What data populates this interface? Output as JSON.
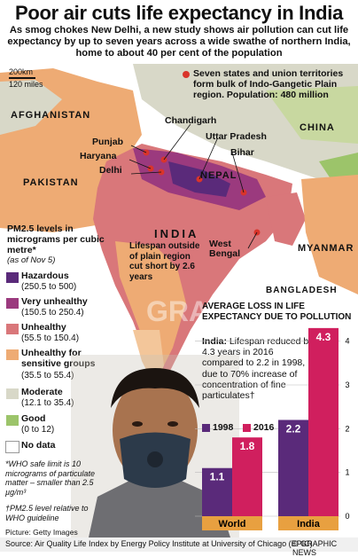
{
  "title": "Poor air cuts life expectancy in India",
  "subtitle": "As smog chokes New Delhi, a new study shows air pollution can cut life expectancy by up to seven years across a wide swathe of northern India, home to about 40 per cent of the population",
  "scale": {
    "km": "200km",
    "miles": "120 miles"
  },
  "states_note": "Seven states and union territories form bulk of Indo-Gangetic Plain region. Population: 480 million",
  "countries": {
    "afghanistan": "AFGHANISTAN",
    "pakistan": "PAKISTAN",
    "china": "CHINA",
    "nepal": "NEPAL",
    "india": "INDIA",
    "myanmar": "MYANMAR",
    "bangladesh": "BANGLADESH"
  },
  "places": {
    "punjab": "Punjab",
    "haryana": "Haryana",
    "delhi": "Delhi",
    "chandigarh": "Chandigarh",
    "uttar_pradesh": "Uttar Pradesh",
    "bihar": "Bihar",
    "west_bengal": "West Bengal"
  },
  "legend": {
    "title": "PM2.5 levels in micrograms per cubic metre*",
    "subtitle": "(as of Nov 5)",
    "items": [
      {
        "name": "Hazardous",
        "range": "(250.5 to 500)",
        "color": "#5a2a7a"
      },
      {
        "name": "Very unhealthy",
        "range": "(150.5 to 250.4)",
        "color": "#9b3a7e"
      },
      {
        "name": "Unhealthy",
        "range": "(55.5 to 150.4)",
        "color": "#d9777a"
      },
      {
        "name": "Unhealthy for sensitive groups",
        "range": "(35.5 to 55.4)",
        "color": "#eeab74"
      },
      {
        "name": "Moderate",
        "range": "(12.1 to 35.4)",
        "color": "#d8d8c8"
      },
      {
        "name": "Good",
        "range": "(0 to 12)",
        "color": "#9cc46a"
      },
      {
        "name": "No data",
        "range": "",
        "color": "#ffffff"
      }
    ]
  },
  "lifespan_note": "Lifespan outside of plain region cut short by 2.6 years",
  "who_note": "*WHO safe limit is 10 micrograms of particulate matter – smaller than 2.5 µg/m³",
  "pm_note": "†PM2.5 level relative to WHO guideline",
  "picture_credit": "Picture: Getty Images",
  "watermark": "GRAPHIC NEWS",
  "chart_data": {
    "type": "bar",
    "title": "AVERAGE LOSS IN LIFE EXPECTANCY DUE TO POLLUTION",
    "categories": [
      "World",
      "India"
    ],
    "series": [
      {
        "name": "1998",
        "values": [
          1.1,
          2.2
        ],
        "color": "#5a2a7a"
      },
      {
        "name": "2016",
        "values": [
          1.8,
          4.3
        ],
        "color": "#d01f5e"
      }
    ],
    "value_labels": {
      "world_1998": "1.1",
      "world_2016": "1.8",
      "india_1998": "2.2",
      "india_2016": "4.3"
    },
    "ylim": [
      0,
      4.5
    ],
    "yticks": [
      0,
      1,
      2,
      3,
      4
    ],
    "ytick_labels": [
      "0",
      "1",
      "2",
      "3",
      "4"
    ],
    "note_heading": "India:",
    "note_body": "Lifespan reduced by 4.3 years in 2016 compared to 2.2 in 1998, due to 70% increase of concentration of fine particulates†"
  },
  "source": {
    "text": "Source: Air Quality Life Index by Energy Policy Institute at University of Chicago (EPIC)",
    "credit": "© GRAPHIC NEWS"
  }
}
